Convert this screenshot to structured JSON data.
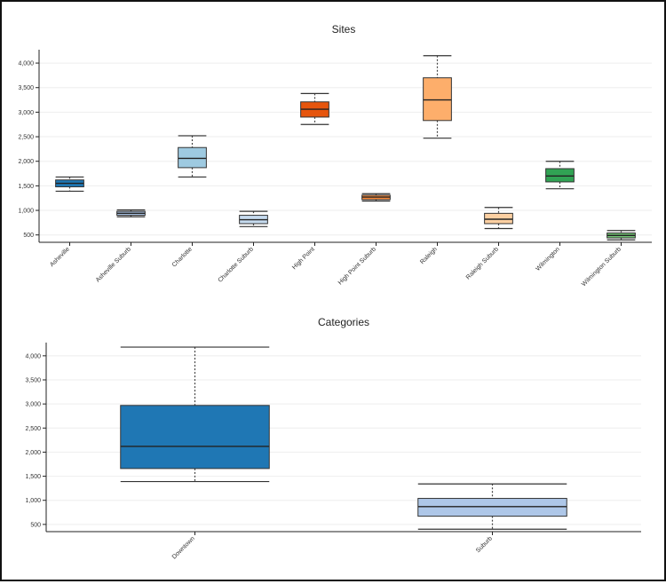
{
  "chart_data": [
    {
      "type": "box",
      "title": "Sites",
      "xlabel": "",
      "ylabel": "",
      "ylim": [
        350,
        4200
      ],
      "y_ticks": [
        500,
        1000,
        1500,
        2000,
        2500,
        3000,
        3500,
        4000
      ],
      "y_tick_labels": [
        "500",
        "1,000",
        "1,500",
        "2,000",
        "2,500",
        "3,000",
        "3,500",
        "4,000"
      ],
      "grid": true,
      "categories": [
        "Asheville",
        "Asheville Suburb",
        "Charlotte",
        "Charlotte Suburb",
        "High Point",
        "High Point Suburb",
        "Raleigh",
        "Raleigh Suburb",
        "Wilmington",
        "Wilmington Suburb"
      ],
      "boxes": [
        {
          "min": 1390,
          "q1": 1480,
          "median": 1550,
          "q3": 1620,
          "max": 1680,
          "color": "#1f77b4"
        },
        {
          "min": 870,
          "q1": 900,
          "median": 940,
          "q3": 980,
          "max": 1010,
          "color": "#aec7e8"
        },
        {
          "min": 1680,
          "q1": 1870,
          "median": 2060,
          "q3": 2280,
          "max": 2520,
          "color": "#9ecae1"
        },
        {
          "min": 670,
          "q1": 730,
          "median": 810,
          "q3": 900,
          "max": 980,
          "color": "#c6dbef"
        },
        {
          "min": 2750,
          "q1": 2900,
          "median": 3060,
          "q3": 3210,
          "max": 3380,
          "color": "#e6550d"
        },
        {
          "min": 1190,
          "q1": 1220,
          "median": 1270,
          "q3": 1310,
          "max": 1340,
          "color": "#fd8d3c"
        },
        {
          "min": 2470,
          "q1": 2830,
          "median": 3250,
          "q3": 3700,
          "max": 4150,
          "color": "#fdae6b"
        },
        {
          "min": 630,
          "q1": 730,
          "median": 820,
          "q3": 940,
          "max": 1060,
          "color": "#fdd0a2"
        },
        {
          "min": 1440,
          "q1": 1580,
          "median": 1700,
          "q3": 1850,
          "max": 2000,
          "color": "#31a354"
        },
        {
          "min": 400,
          "q1": 440,
          "median": 490,
          "q3": 540,
          "max": 590,
          "color": "#74c476"
        }
      ]
    },
    {
      "type": "box",
      "title": "Categories",
      "xlabel": "",
      "ylabel": "",
      "ylim": [
        350,
        4200
      ],
      "y_ticks": [
        500,
        1000,
        1500,
        2000,
        2500,
        3000,
        3500,
        4000
      ],
      "y_tick_labels": [
        "500",
        "1,000",
        "1,500",
        "2,000",
        "2,500",
        "3,000",
        "3,500",
        "4,000"
      ],
      "grid": true,
      "categories": [
        "Downtown",
        "Suburb"
      ],
      "boxes": [
        {
          "min": 1390,
          "q1": 1660,
          "median": 2120,
          "q3": 2970,
          "max": 4180,
          "color": "#1f77b4"
        },
        {
          "min": 400,
          "q1": 670,
          "median": 870,
          "q3": 1040,
          "max": 1340,
          "color": "#aec7e8"
        }
      ]
    }
  ]
}
